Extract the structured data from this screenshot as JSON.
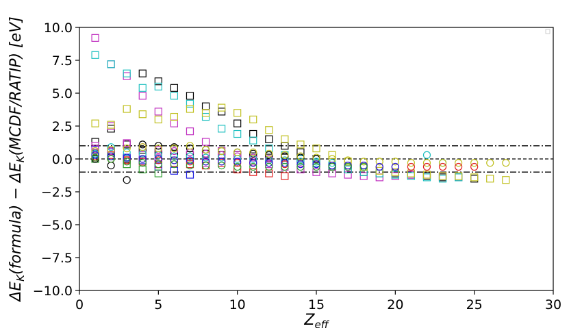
{
  "chart_data": {
    "type": "scatter",
    "title": "",
    "xlabel": "Z_eff",
    "ylabel": "ΔE_K(formula) − ΔE_K(MCDF/RATIP) [eV]",
    "xlim": [
      0,
      30
    ],
    "ylim": [
      -10,
      10
    ],
    "xticks": [
      0,
      5,
      10,
      15,
      20,
      25,
      30
    ],
    "yticks": [
      -10.0,
      -7.5,
      -5.0,
      -2.5,
      0.0,
      2.5,
      5.0,
      7.5,
      10.0
    ],
    "xtick_labels": [
      "0",
      "5",
      "10",
      "15",
      "20",
      "25",
      "30"
    ],
    "ytick_labels": [
      "−10.0",
      "−7.5",
      "−5.0",
      "−2.5",
      "0.0",
      "2.5",
      "5.0",
      "7.5",
      "10.0"
    ],
    "grid": false,
    "legend": "top-right (empty marker box)",
    "reference_lines": [
      {
        "y": 0,
        "style": "dashed",
        "color": "#000000"
      },
      {
        "y": 1,
        "style": "dashdot",
        "color": "#000000"
      },
      {
        "y": -1,
        "style": "dashdot",
        "color": "#000000"
      }
    ],
    "series": [
      {
        "marker": "square",
        "color": "#000000",
        "points": [
          [
            1,
            1.3
          ],
          [
            1,
            0.4
          ],
          [
            2,
            2.3
          ],
          [
            2,
            0.6
          ],
          [
            3,
            1.1
          ],
          [
            3,
            0.0
          ],
          [
            4,
            6.5
          ],
          [
            4,
            0.7
          ],
          [
            5,
            5.9
          ],
          [
            5,
            0.5
          ],
          [
            6,
            5.4
          ],
          [
            6,
            0.4
          ],
          [
            7,
            4.8
          ],
          [
            7,
            0.3
          ],
          [
            8,
            4.0
          ],
          [
            8,
            0.4
          ],
          [
            9,
            3.6
          ],
          [
            9,
            0.3
          ],
          [
            10,
            2.7
          ],
          [
            10,
            0.3
          ],
          [
            11,
            1.9
          ],
          [
            11,
            0.2
          ],
          [
            12,
            1.5
          ],
          [
            12,
            0.1
          ],
          [
            13,
            1.0
          ],
          [
            13,
            0.1
          ],
          [
            14,
            0.5
          ],
          [
            14,
            0.0
          ],
          [
            15,
            0.0
          ],
          [
            16,
            -0.6
          ],
          [
            17,
            -0.8
          ],
          [
            18,
            -1.0
          ],
          [
            19,
            -1.1
          ],
          [
            20,
            -1.1
          ],
          [
            21,
            -1.2
          ],
          [
            22,
            -1.3
          ],
          [
            23,
            -1.4
          ],
          [
            24,
            -1.4
          ],
          [
            25,
            -1.5
          ]
        ]
      },
      {
        "marker": "square",
        "color": "#c030c0",
        "points": [
          [
            1,
            9.2
          ],
          [
            1,
            1.0
          ],
          [
            2,
            7.2
          ],
          [
            2,
            2.5
          ],
          [
            3,
            6.3
          ],
          [
            3,
            1.2
          ],
          [
            4,
            4.8
          ],
          [
            4,
            0.3
          ],
          [
            5,
            3.6
          ],
          [
            5,
            0.1
          ],
          [
            6,
            2.7
          ],
          [
            7,
            2.1
          ],
          [
            8,
            1.3
          ],
          [
            8,
            -0.3
          ],
          [
            9,
            0.6
          ],
          [
            10,
            0.3
          ],
          [
            11,
            -0.2
          ],
          [
            12,
            -0.4
          ],
          [
            13,
            -0.6
          ],
          [
            14,
            -0.8
          ],
          [
            15,
            -1.0
          ],
          [
            16,
            -1.1
          ],
          [
            17,
            -1.2
          ],
          [
            18,
            -1.3
          ],
          [
            19,
            -1.4
          ],
          [
            20,
            -1.3
          ],
          [
            21,
            -1.2
          ],
          [
            22,
            -1.2
          ],
          [
            23,
            -1.3
          ]
        ]
      },
      {
        "marker": "square",
        "color": "#20c0c0",
        "points": [
          [
            1,
            7.9
          ],
          [
            2,
            7.2
          ],
          [
            3,
            6.5
          ],
          [
            4,
            5.4
          ],
          [
            5,
            5.5
          ],
          [
            6,
            4.8
          ],
          [
            7,
            4.2
          ],
          [
            8,
            3.2
          ],
          [
            9,
            2.3
          ],
          [
            10,
            1.9
          ],
          [
            11,
            1.4
          ],
          [
            12,
            0.8
          ],
          [
            13,
            0.3
          ],
          [
            14,
            0.0
          ],
          [
            15,
            -0.3
          ],
          [
            16,
            -0.5
          ],
          [
            17,
            -0.8
          ],
          [
            18,
            -1.0
          ],
          [
            19,
            -1.1
          ],
          [
            20,
            -1.2
          ],
          [
            21,
            -1.3
          ],
          [
            22,
            -1.4
          ],
          [
            23,
            -1.5
          ],
          [
            24,
            -1.4
          ]
        ]
      },
      {
        "marker": "square",
        "color": "#c0c020",
        "points": [
          [
            1,
            2.7
          ],
          [
            2,
            2.6
          ],
          [
            3,
            3.8
          ],
          [
            4,
            3.4
          ],
          [
            5,
            3.0
          ],
          [
            6,
            3.2
          ],
          [
            7,
            3.8
          ],
          [
            8,
            3.5
          ],
          [
            9,
            3.9
          ],
          [
            10,
            3.5
          ],
          [
            11,
            3.0
          ],
          [
            12,
            2.2
          ],
          [
            13,
            1.5
          ],
          [
            14,
            1.1
          ],
          [
            15,
            0.8
          ],
          [
            16,
            0.3
          ],
          [
            17,
            -0.2
          ],
          [
            18,
            -0.6
          ],
          [
            19,
            -0.9
          ],
          [
            20,
            -1.0
          ],
          [
            21,
            -1.1
          ],
          [
            22,
            -1.2
          ],
          [
            23,
            -1.3
          ],
          [
            24,
            -1.3
          ],
          [
            25,
            -1.4
          ],
          [
            26,
            -1.5
          ],
          [
            27,
            -1.6
          ]
        ]
      },
      {
        "marker": "square",
        "color": "#e02020",
        "points": [
          [
            1,
            0.2
          ],
          [
            2,
            0.3
          ],
          [
            3,
            -0.1
          ],
          [
            4,
            -0.2
          ],
          [
            5,
            -0.4
          ],
          [
            6,
            -0.3
          ],
          [
            7,
            -0.4
          ],
          [
            8,
            -0.5
          ],
          [
            9,
            -0.3
          ],
          [
            10,
            -0.8
          ],
          [
            11,
            -1.0
          ],
          [
            12,
            -1.1
          ],
          [
            13,
            -1.3
          ]
        ]
      },
      {
        "marker": "square",
        "color": "#2020e0",
        "points": [
          [
            1,
            0.7
          ],
          [
            2,
            0.5
          ],
          [
            3,
            0.1
          ],
          [
            4,
            -0.1
          ],
          [
            5,
            -0.6
          ],
          [
            6,
            -0.9
          ],
          [
            7,
            -1.2
          ]
        ]
      },
      {
        "marker": "square",
        "color": "#30a030",
        "points": [
          [
            1,
            0.0
          ],
          [
            2,
            0.2
          ],
          [
            3,
            -0.4
          ],
          [
            4,
            -0.8
          ],
          [
            5,
            -1.1
          ]
        ]
      },
      {
        "marker": "circle",
        "color": "#000000",
        "points": [
          [
            1,
            0.0
          ],
          [
            2,
            -0.5
          ],
          [
            3,
            -1.6
          ],
          [
            4,
            1.1
          ],
          [
            5,
            1.0
          ],
          [
            6,
            0.9
          ],
          [
            7,
            0.8
          ],
          [
            8,
            0.7
          ],
          [
            9,
            0.6
          ],
          [
            10,
            0.5
          ],
          [
            11,
            0.4
          ],
          [
            12,
            0.3
          ],
          [
            13,
            0.2
          ],
          [
            14,
            0.1
          ],
          [
            15,
            0.0
          ]
        ]
      },
      {
        "marker": "circle",
        "color": "#c030c0",
        "points": [
          [
            1,
            0.8
          ],
          [
            2,
            0.6
          ],
          [
            3,
            1.2
          ],
          [
            4,
            0.9
          ],
          [
            5,
            0.7
          ],
          [
            6,
            0.6
          ],
          [
            7,
            0.5
          ],
          [
            8,
            0.4
          ],
          [
            9,
            0.3
          ],
          [
            10,
            0.2
          ],
          [
            11,
            0.1
          ],
          [
            12,
            0.0
          ],
          [
            13,
            -0.1
          ],
          [
            14,
            -0.2
          ]
        ]
      },
      {
        "marker": "circle",
        "color": "#20c0c0",
        "points": [
          [
            1,
            0.4
          ],
          [
            2,
            0.9
          ],
          [
            3,
            0.5
          ],
          [
            4,
            0.4
          ],
          [
            5,
            0.3
          ],
          [
            6,
            0.2
          ],
          [
            7,
            0.2
          ],
          [
            8,
            0.1
          ],
          [
            9,
            0.1
          ],
          [
            10,
            0.0
          ],
          [
            11,
            0.0
          ],
          [
            12,
            -0.1
          ],
          [
            13,
            -0.1
          ],
          [
            14,
            -0.2
          ],
          [
            15,
            -0.2
          ],
          [
            16,
            -0.3
          ],
          [
            22,
            0.3
          ],
          [
            23,
            -0.3
          ]
        ]
      },
      {
        "marker": "circle",
        "color": "#c0c020",
        "points": [
          [
            1,
            0.6
          ],
          [
            2,
            0.7
          ],
          [
            3,
            0.8
          ],
          [
            4,
            0.9
          ],
          [
            5,
            0.8
          ],
          [
            6,
            0.8
          ],
          [
            7,
            1.0
          ],
          [
            8,
            0.7
          ],
          [
            9,
            0.6
          ],
          [
            10,
            0.5
          ],
          [
            11,
            0.5
          ],
          [
            12,
            0.4
          ],
          [
            13,
            0.3
          ],
          [
            14,
            0.2
          ],
          [
            15,
            0.1
          ],
          [
            16,
            0.0
          ],
          [
            17,
            -0.1
          ],
          [
            18,
            -0.2
          ],
          [
            19,
            -0.2
          ],
          [
            20,
            -0.2
          ],
          [
            21,
            -0.3
          ],
          [
            22,
            -0.3
          ],
          [
            23,
            -0.3
          ],
          [
            24,
            -0.3
          ],
          [
            25,
            -0.3
          ],
          [
            26,
            -0.3
          ],
          [
            27,
            -0.3
          ]
        ]
      },
      {
        "marker": "circle",
        "color": "#e02020",
        "points": [
          [
            1,
            0.1
          ],
          [
            2,
            0.0
          ],
          [
            3,
            -0.1
          ],
          [
            4,
            0.0
          ],
          [
            5,
            -0.1
          ],
          [
            6,
            -0.1
          ],
          [
            7,
            -0.2
          ],
          [
            8,
            -0.2
          ],
          [
            9,
            -0.2
          ],
          [
            10,
            -0.3
          ],
          [
            11,
            -0.3
          ],
          [
            12,
            -0.3
          ],
          [
            13,
            -0.4
          ],
          [
            14,
            -0.4
          ],
          [
            15,
            -0.4
          ],
          [
            16,
            -0.5
          ],
          [
            17,
            -0.5
          ],
          [
            18,
            -0.5
          ],
          [
            19,
            -0.6
          ],
          [
            20,
            -0.6
          ],
          [
            21,
            -0.6
          ],
          [
            22,
            -0.6
          ],
          [
            23,
            -0.6
          ],
          [
            24,
            -0.6
          ],
          [
            25,
            -0.6
          ]
        ]
      },
      {
        "marker": "circle",
        "color": "#2020e0",
        "points": [
          [
            1,
            0.3
          ],
          [
            2,
            0.2
          ],
          [
            3,
            0.1
          ],
          [
            4,
            0.0
          ],
          [
            5,
            0.0
          ],
          [
            6,
            -0.1
          ],
          [
            7,
            -0.1
          ],
          [
            8,
            -0.2
          ],
          [
            9,
            -0.2
          ],
          [
            10,
            -0.2
          ],
          [
            11,
            -0.3
          ],
          [
            12,
            -0.3
          ],
          [
            13,
            -0.3
          ],
          [
            14,
            -0.4
          ],
          [
            15,
            -0.4
          ],
          [
            16,
            -0.5
          ],
          [
            17,
            -0.5
          ],
          [
            18,
            -0.5
          ],
          [
            19,
            -0.6
          ],
          [
            20,
            -0.6
          ]
        ]
      },
      {
        "marker": "circle",
        "color": "#30a030",
        "points": [
          [
            1,
            0.1
          ],
          [
            2,
            0.0
          ],
          [
            3,
            -0.2
          ],
          [
            4,
            -0.3
          ],
          [
            5,
            -0.4
          ],
          [
            6,
            -0.4
          ],
          [
            7,
            -0.5
          ],
          [
            8,
            -0.5
          ],
          [
            9,
            -0.5
          ],
          [
            10,
            -0.6
          ],
          [
            11,
            -0.6
          ],
          [
            12,
            -0.6
          ],
          [
            13,
            -0.6
          ],
          [
            14,
            -0.6
          ],
          [
            15,
            -0.6
          ],
          [
            16,
            -0.6
          ],
          [
            17,
            -0.6
          ],
          [
            18,
            -0.6
          ]
        ]
      }
    ]
  }
}
